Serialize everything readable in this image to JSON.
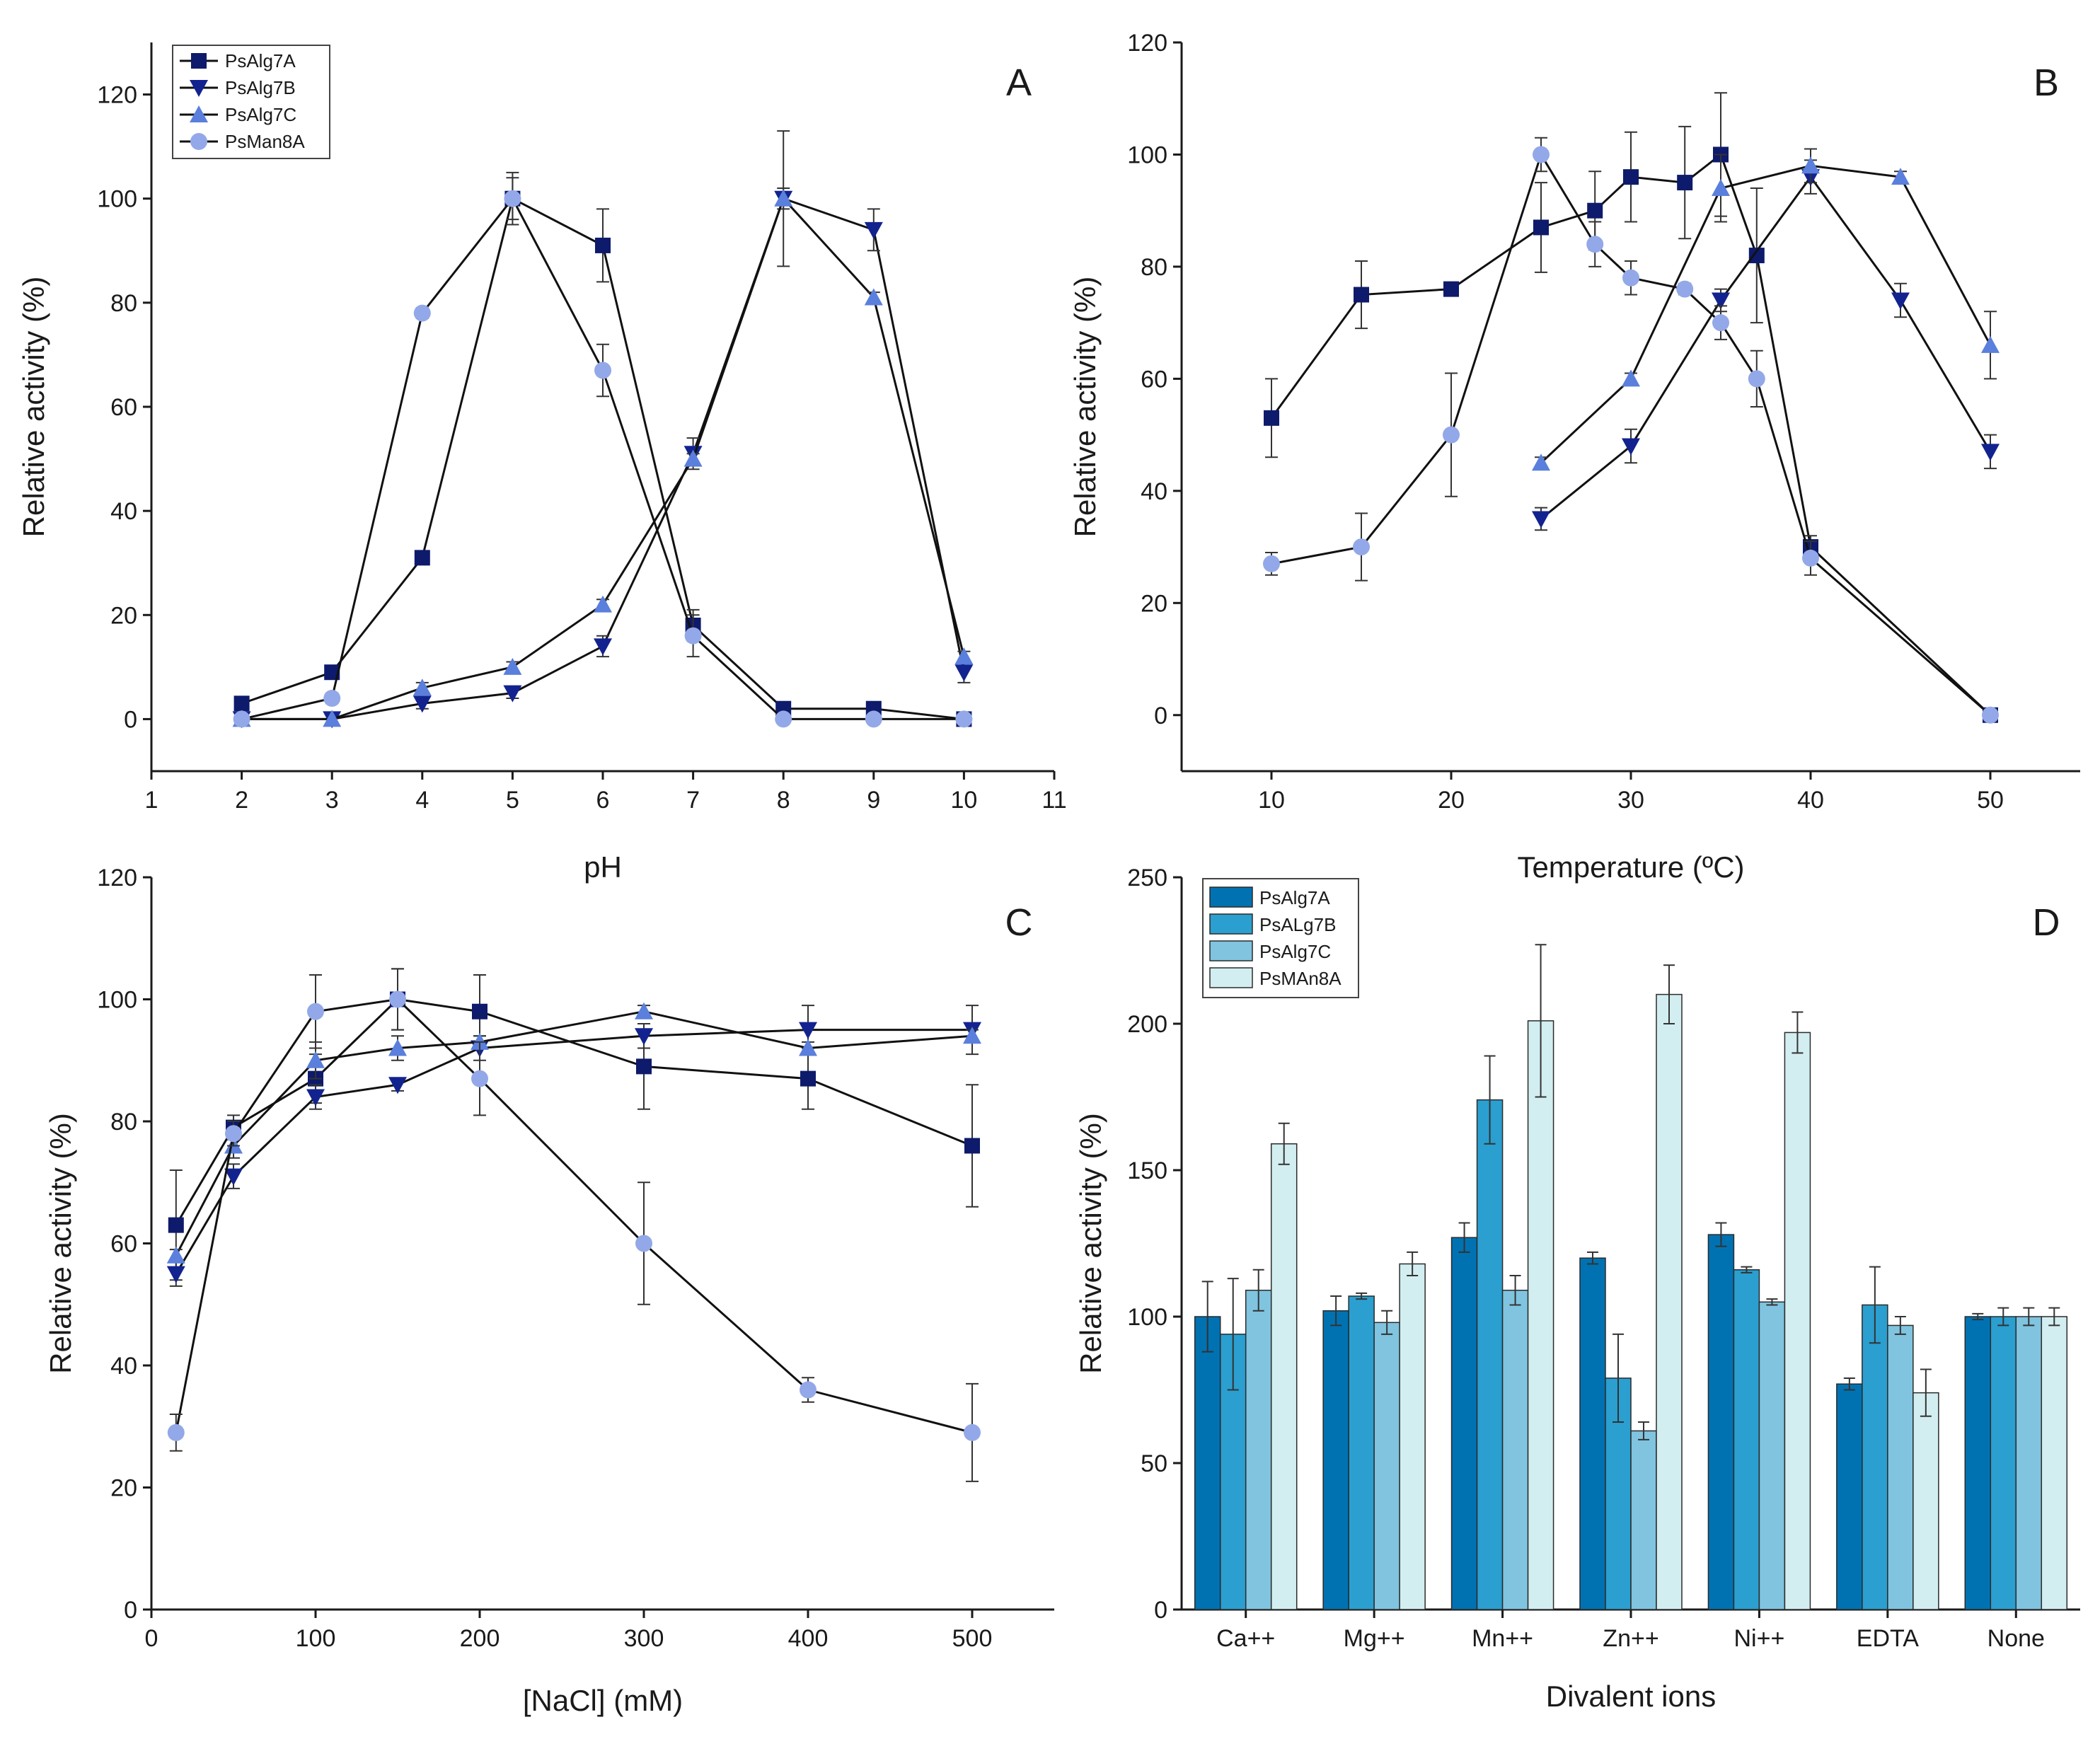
{
  "colors": {
    "PsAlg7A": "#0e1a6b",
    "PsAlg7B": "#12238f",
    "PsAlg7C": "#5a7fdc",
    "PsMan8A": "#93a8e8",
    "bar_PsAlg7A": "#0072b2",
    "bar_PsALg7B": "#2a9fd0",
    "bar_PsAlg7C": "#80c4e0",
    "bar_PsMAn8A": "#d3eef0"
  },
  "chart_data": [
    {
      "panel": "A",
      "type": "line",
      "letter": "A",
      "xlabel": "pH",
      "ylabel": "Relative activity (%)",
      "xlim": [
        1,
        11
      ],
      "ylim": [
        -10,
        130
      ],
      "xticks": [
        1,
        2,
        3,
        4,
        5,
        6,
        7,
        8,
        9,
        10,
        11
      ],
      "yticks": [
        0,
        20,
        40,
        60,
        80,
        100,
        120
      ],
      "legend": {
        "position": "top-left",
        "entries": [
          "PsAlg7A",
          "PsAlg7B",
          "PsAlg7C",
          "PsMan8A"
        ]
      },
      "series": [
        {
          "name": "PsAlg7A",
          "marker": "square",
          "x": [
            2,
            3,
            4,
            5,
            6,
            7,
            8,
            9,
            10
          ],
          "y": [
            3,
            9,
            31,
            100,
            91,
            18,
            2,
            2,
            0
          ],
          "err": [
            0,
            1,
            1,
            4,
            7,
            3,
            1,
            1,
            0
          ]
        },
        {
          "name": "PsAlg7B",
          "marker": "triangle-down",
          "x": [
            2,
            3,
            4,
            5,
            6,
            7,
            8,
            9,
            10
          ],
          "y": [
            0,
            0,
            3,
            5,
            14,
            51,
            100,
            94,
            9
          ],
          "err": [
            0,
            0,
            1,
            1,
            2,
            3,
            2,
            4,
            2
          ]
        },
        {
          "name": "PsAlg7C",
          "marker": "triangle-up",
          "x": [
            2,
            3,
            4,
            5,
            6,
            7,
            8,
            9,
            10
          ],
          "y": [
            0,
            0,
            6,
            10,
            22,
            50,
            100,
            81,
            12
          ],
          "err": [
            0,
            0,
            1,
            1,
            1,
            1,
            13,
            1,
            1
          ]
        },
        {
          "name": "PsMan8A",
          "marker": "circle",
          "x": [
            2,
            3,
            4,
            5,
            6,
            7,
            8,
            9,
            10
          ],
          "y": [
            0,
            4,
            78,
            100,
            67,
            16,
            0,
            0,
            0
          ],
          "err": [
            0,
            1,
            1,
            5,
            5,
            4,
            0,
            0,
            0
          ]
        }
      ]
    },
    {
      "panel": "B",
      "type": "line",
      "letter": "B",
      "xlabel": "Temperature (ºC)",
      "ylabel": "Relative activity (%)",
      "xlim": [
        5,
        55
      ],
      "ylim": [
        -10,
        120
      ],
      "xticks": [
        10,
        20,
        30,
        40,
        50
      ],
      "yticks": [
        0,
        20,
        40,
        60,
        80,
        100,
        120
      ],
      "series": [
        {
          "name": "PsAlg7A",
          "marker": "square",
          "x": [
            10,
            15,
            20,
            25,
            28,
            30,
            33,
            35,
            37,
            40,
            50
          ],
          "y": [
            53,
            75,
            76,
            87,
            90,
            96,
            95,
            100,
            82,
            30,
            0
          ],
          "err": [
            7,
            6,
            0,
            8,
            7,
            8,
            10,
            11,
            12,
            2,
            0
          ]
        },
        {
          "name": "PsAlg7B",
          "marker": "triangle-down",
          "x": [
            25,
            30,
            35,
            40,
            45,
            50
          ],
          "y": [
            35,
            48,
            74,
            96,
            74,
            47
          ],
          "err": [
            2,
            3,
            2,
            3,
            3,
            3
          ]
        },
        {
          "name": "PsAlg7C",
          "marker": "triangle-up",
          "x": [
            25,
            30,
            35,
            40,
            45,
            50
          ],
          "y": [
            45,
            60,
            94,
            98,
            96,
            66
          ],
          "err": [
            1,
            1,
            6,
            3,
            1,
            6
          ]
        },
        {
          "name": "PsMan8A",
          "marker": "circle",
          "x": [
            10,
            15,
            20,
            25,
            28,
            30,
            33,
            35,
            37,
            40,
            50
          ],
          "y": [
            27,
            30,
            50,
            100,
            84,
            78,
            76,
            70,
            60,
            28,
            0
          ],
          "err": [
            2,
            6,
            11,
            3,
            4,
            3,
            1,
            3,
            5,
            3,
            0
          ]
        }
      ]
    },
    {
      "panel": "C",
      "type": "line",
      "letter": "C",
      "xlabel": "[NaCl] (mM)",
      "ylabel": "Relative activity (%)",
      "xlim": [
        0,
        550
      ],
      "ylim": [
        0,
        120
      ],
      "xticks": [
        0,
        100,
        200,
        300,
        400,
        500
      ],
      "yticks": [
        0,
        20,
        40,
        60,
        80,
        100,
        120
      ],
      "series": [
        {
          "name": "PsAlg7A",
          "marker": "square",
          "x": [
            15,
            50,
            100,
            150,
            200,
            300,
            400,
            500
          ],
          "y": [
            63,
            79,
            87,
            100,
            98,
            89,
            87,
            76
          ],
          "err": [
            9,
            2,
            4,
            5,
            6,
            7,
            5,
            10
          ]
        },
        {
          "name": "PsAlg7B",
          "marker": "triangle-down",
          "x": [
            15,
            50,
            100,
            150,
            200,
            300,
            400,
            500
          ],
          "y": [
            55,
            71,
            84,
            86,
            92,
            94,
            95,
            95
          ],
          "err": [
            2,
            2,
            2,
            1,
            2,
            2,
            4,
            4
          ]
        },
        {
          "name": "PsAlg7C",
          "marker": "triangle-up",
          "x": [
            15,
            50,
            100,
            150,
            200,
            300,
            400,
            500
          ],
          "y": [
            58,
            76,
            90,
            92,
            93,
            98,
            92,
            94
          ],
          "err": [
            1,
            2,
            3,
            2,
            1,
            1,
            1,
            1
          ]
        },
        {
          "name": "PsMan8A",
          "marker": "circle",
          "x": [
            15,
            50,
            100,
            150,
            200,
            300,
            400,
            500
          ],
          "y": [
            29,
            78,
            98,
            100,
            87,
            60,
            36,
            29
          ],
          "err": [
            3,
            2,
            6,
            5,
            6,
            10,
            2,
            8
          ]
        }
      ]
    },
    {
      "panel": "D",
      "type": "bar",
      "letter": "D",
      "xlabel": "Divalent ions",
      "ylabel": "Relative activity (%)",
      "ylim": [
        0,
        250
      ],
      "yticks": [
        0,
        50,
        100,
        150,
        200,
        250
      ],
      "categories": [
        "Ca++",
        "Mg++",
        "Mn++",
        "Zn++",
        "Ni++",
        "EDTA",
        "None"
      ],
      "legend": {
        "position": "top-left",
        "entries": [
          "PsAlg7A",
          "PsALg7B",
          "PsAlg7C",
          "PsMAn8A"
        ]
      },
      "series": [
        {
          "name": "PsAlg7A",
          "values": [
            100,
            102,
            127,
            120,
            128,
            77,
            100
          ],
          "err": [
            12,
            5,
            5,
            2,
            4,
            2,
            1
          ]
        },
        {
          "name": "PsALg7B",
          "values": [
            94,
            107,
            174,
            79,
            116,
            104,
            100
          ],
          "err": [
            19,
            1,
            15,
            15,
            1,
            13,
            3
          ]
        },
        {
          "name": "PsAlg7C",
          "values": [
            109,
            98,
            109,
            61,
            105,
            97,
            100
          ],
          "err": [
            7,
            4,
            5,
            3,
            1,
            3,
            3
          ]
        },
        {
          "name": "PsMAn8A",
          "values": [
            159,
            118,
            201,
            210,
            197,
            74,
            100
          ],
          "err": [
            7,
            4,
            26,
            10,
            7,
            8,
            3
          ]
        }
      ]
    }
  ]
}
